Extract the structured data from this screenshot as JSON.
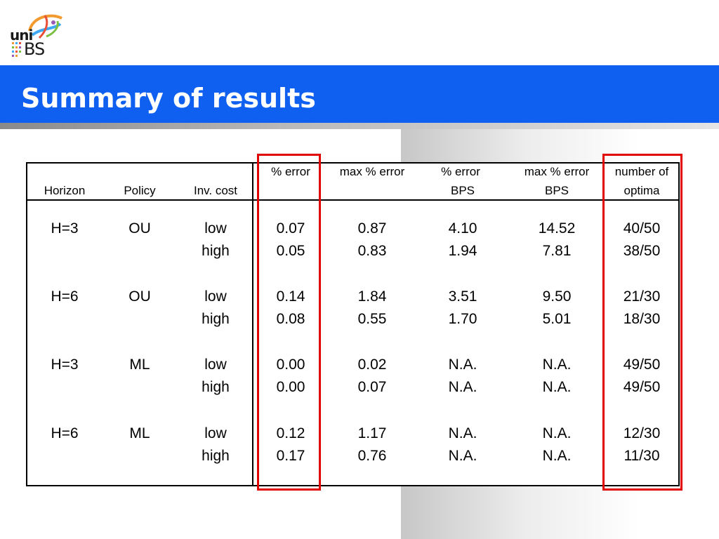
{
  "slide": {
    "title": "Summary of results"
  },
  "logo": {
    "top_text": "uni",
    "bottom_text": "BS"
  },
  "table": {
    "headers": {
      "horizon": "Horizon",
      "policy": "Policy",
      "inv_cost": "Inv. cost",
      "pct_error": "% error",
      "max_pct_error": "max % error",
      "pct_error_bps_1": "% error",
      "pct_error_bps_2": "BPS",
      "max_pct_error_bps_1": "max % error",
      "max_pct_error_bps_2": "BPS",
      "number_of_optima_1": "number of",
      "number_of_optima_2": "optima"
    },
    "rows": [
      {
        "horizon": "H=3",
        "policy": "OU",
        "inv_cost": "low",
        "pct_error": "0.07",
        "max_pct_error": "0.87",
        "pct_error_bps": "4.10",
        "max_pct_error_bps": "14.52",
        "optima": "40/50"
      },
      {
        "horizon": "",
        "policy": "",
        "inv_cost": "high",
        "pct_error": "0.05",
        "max_pct_error": "0.83",
        "pct_error_bps": "1.94",
        "max_pct_error_bps": "7.81",
        "optima": "38/50"
      },
      {
        "horizon": "H=6",
        "policy": "OU",
        "inv_cost": "low",
        "pct_error": "0.14",
        "max_pct_error": "1.84",
        "pct_error_bps": "3.51",
        "max_pct_error_bps": "9.50",
        "optima": "21/30"
      },
      {
        "horizon": "",
        "policy": "",
        "inv_cost": "high",
        "pct_error": "0.08",
        "max_pct_error": "0.55",
        "pct_error_bps": "1.70",
        "max_pct_error_bps": "5.01",
        "optima": "18/30"
      },
      {
        "horizon": "H=3",
        "policy": "ML",
        "inv_cost": "low",
        "pct_error": "0.00",
        "max_pct_error": "0.02",
        "pct_error_bps": "N.A.",
        "max_pct_error_bps": "N.A.",
        "optima": "49/50"
      },
      {
        "horizon": "",
        "policy": "",
        "inv_cost": "high",
        "pct_error": "0.00",
        "max_pct_error": "0.07",
        "pct_error_bps": "N.A.",
        "max_pct_error_bps": "N.A.",
        "optima": "49/50"
      },
      {
        "horizon": "H=6",
        "policy": "ML",
        "inv_cost": "low",
        "pct_error": "0.12",
        "max_pct_error": "1.17",
        "pct_error_bps": "N.A.",
        "max_pct_error_bps": "N.A.",
        "optima": "12/30"
      },
      {
        "horizon": "",
        "policy": "",
        "inv_cost": "high",
        "pct_error": "0.17",
        "max_pct_error": "0.76",
        "pct_error_bps": "N.A.",
        "max_pct_error_bps": "N.A.",
        "optima": "11/30"
      }
    ]
  },
  "colors": {
    "title_bar": "#0f5ff0",
    "highlight": "#e00000"
  }
}
